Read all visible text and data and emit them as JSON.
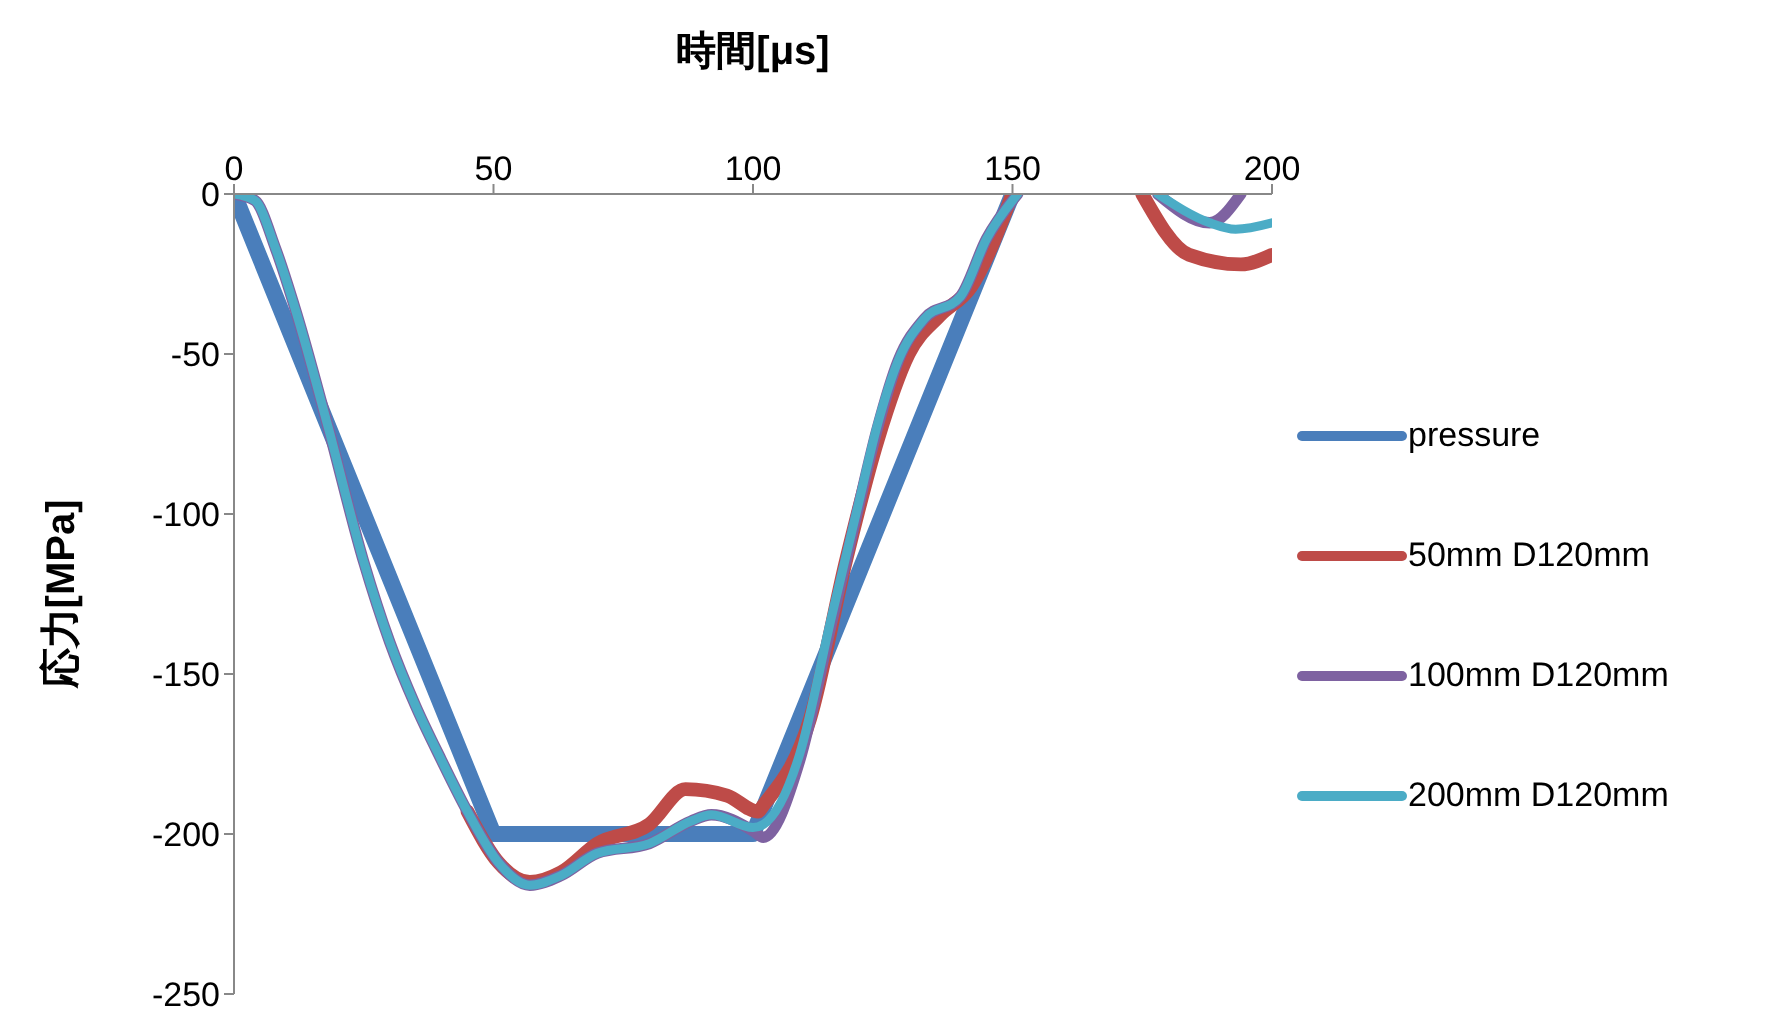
{
  "chart_data": {
    "type": "line",
    "xlabel": "時間[μs]",
    "ylabel": "応力[MPa]",
    "xlim": [
      0,
      200
    ],
    "xticks": [
      0,
      50,
      100,
      150,
      200
    ],
    "ylim": [
      -250,
      0
    ],
    "yticks": [
      0,
      -50,
      -100,
      -150,
      -200,
      -250
    ],
    "grid": false,
    "legend": "right",
    "marker": "none",
    "line_style": "solid",
    "series": [
      {
        "name": "pressure",
        "color": "#4a7ebb",
        "x": [
          0,
          50,
          100,
          150
        ],
        "values": [
          0,
          -200,
          -200,
          0
        ]
      },
      {
        "name": "50mm D120mm",
        "color": "#be4b48",
        "x": [
          45,
          51,
          57,
          63,
          70,
          80,
          87,
          95,
          101,
          102,
          111,
          118,
          124,
          130,
          136,
          142,
          150,
          160,
          175,
          184,
          194,
          200
        ],
        "values": [
          -193,
          -209,
          -215,
          -212,
          -203,
          -197,
          -186,
          -188,
          -193,
          -191,
          -164,
          -114,
          -77,
          -50,
          -38,
          -29,
          0,
          null,
          0,
          -19,
          -22,
          -19
        ]
      },
      {
        "name": "100mm D120mm",
        "color": "#7e62a1",
        "x": [
          0,
          4,
          8,
          12,
          18,
          25,
          30,
          35,
          40,
          45,
          51,
          57,
          63,
          70,
          80,
          88,
          92,
          100,
          102,
          109,
          115,
          120,
          124,
          128,
          133,
          140,
          145,
          151,
          165,
          178,
          188,
          194
        ],
        "values": [
          0,
          -2,
          -17,
          -37,
          -72,
          -115,
          -140,
          -160,
          -177,
          -193,
          -209,
          -216,
          -213,
          -206,
          -203,
          -196,
          -194,
          -199,
          -201,
          -177,
          -135,
          -100,
          -73,
          -52,
          -39,
          -32,
          -14,
          0,
          null,
          0,
          -9,
          0
        ]
      },
      {
        "name": "200mm D120mm",
        "color": "#4bacc6",
        "x": [
          0,
          4,
          8,
          12,
          18,
          25,
          30,
          35,
          40,
          45,
          51,
          57,
          63,
          70,
          80,
          88,
          92,
          100,
          102,
          109,
          115,
          120,
          124,
          128,
          133,
          140,
          145,
          151,
          165,
          178,
          188,
          193,
          200
        ],
        "values": [
          0,
          -2,
          -17,
          -37,
          -72,
          -115,
          -140,
          -160,
          -177,
          -193,
          -209,
          -216,
          -213,
          -206,
          -203,
          -196,
          -194,
          -198,
          -197,
          -175,
          -133,
          -99,
          -72,
          -52,
          -39,
          -32,
          -14,
          0,
          null,
          0,
          -9,
          -11,
          -9
        ]
      }
    ]
  }
}
